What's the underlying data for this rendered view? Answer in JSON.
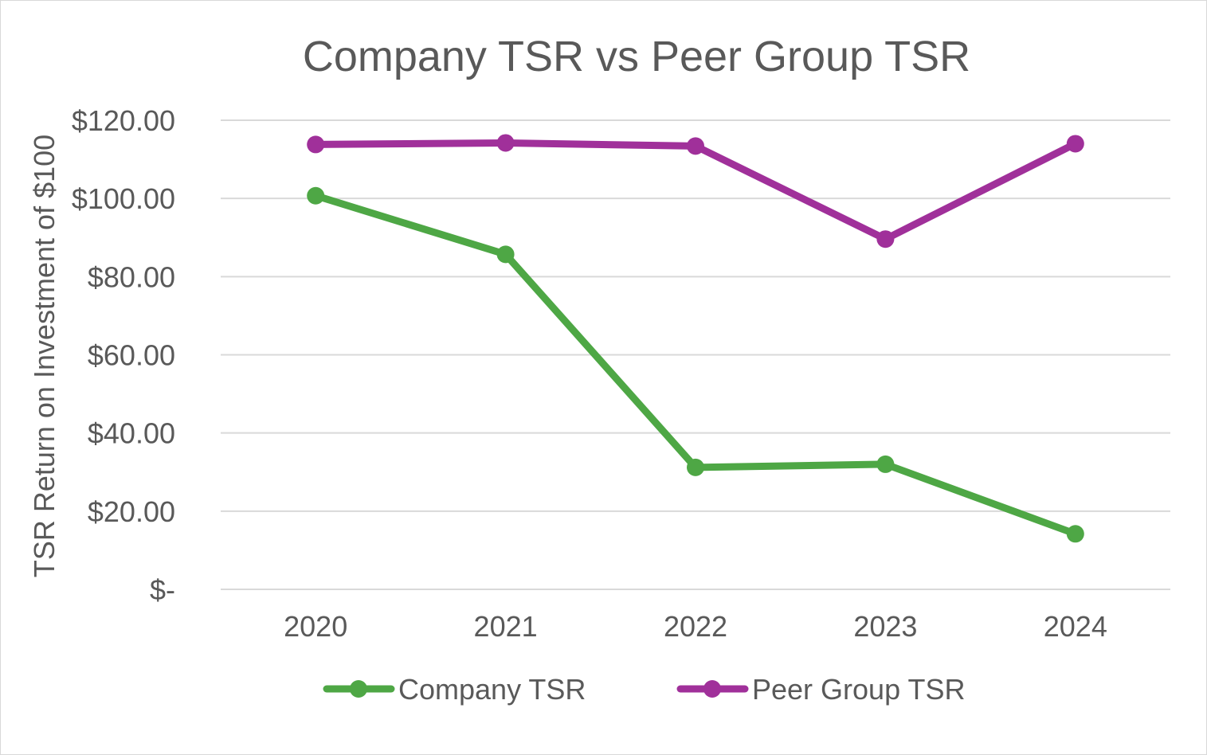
{
  "chart_data": {
    "type": "line",
    "title": "Company TSR vs Peer Group TSR",
    "xlabel": "",
    "ylabel": "TSR Return on Investment of $100",
    "categories": [
      "2020",
      "2021",
      "2022",
      "2023",
      "2024"
    ],
    "ylim": [
      0,
      120
    ],
    "ytick_values": [
      0,
      20,
      40,
      60,
      80,
      100,
      120
    ],
    "ytick_labels": [
      "$-",
      "$20.00",
      "$40.00",
      "$60.00",
      "$80.00",
      "$100.00",
      "$120.00"
    ],
    "grid": true,
    "legend_position": "bottom",
    "series": [
      {
        "name": "Company TSR",
        "color": "#4ea745",
        "values": [
          100.7,
          85.7,
          31.2,
          32.0,
          14.2
        ]
      },
      {
        "name": "Peer Group TSR",
        "color": "#a0309a",
        "values": [
          113.8,
          114.2,
          113.4,
          89.6,
          114.0
        ]
      }
    ]
  }
}
